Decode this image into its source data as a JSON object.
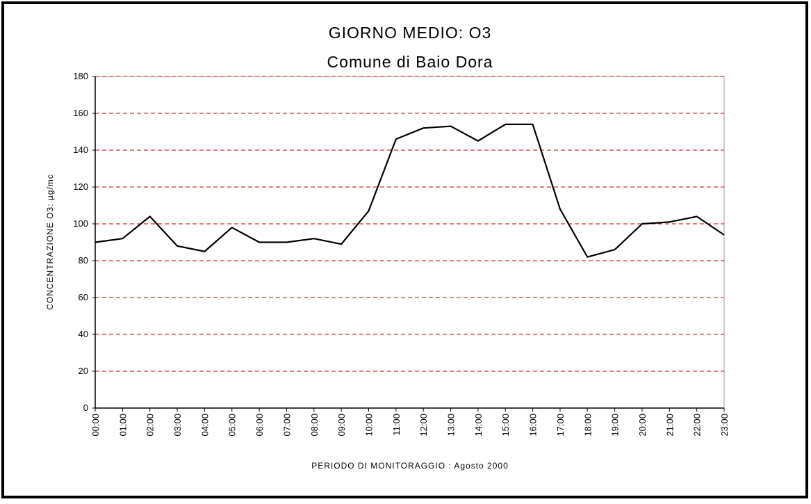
{
  "chart_data": {
    "type": "line",
    "title": "GIORNO MEDIO: O3",
    "subtitle": "Comune di Baio Dora",
    "x_label": "PERIODO DI MONITORAGGIO : Agosto 2000",
    "y_label": "CONCENTRAZIONE O3: µg/mc",
    "categories": [
      "00:00",
      "01:00",
      "02:00",
      "03:00",
      "04:00",
      "05:00",
      "06:00",
      "07:00",
      "08:00",
      "09:00",
      "10:00",
      "11:00",
      "12:00",
      "13:00",
      "14:00",
      "15:00",
      "16:00",
      "17:00",
      "18:00",
      "19:00",
      "20:00",
      "21:00",
      "22:00",
      "23:00"
    ],
    "values": [
      90,
      92,
      104,
      88,
      85,
      98,
      90,
      90,
      92,
      89,
      107,
      146,
      152,
      153,
      145,
      154,
      154,
      108,
      82,
      86,
      100,
      101,
      104,
      94
    ],
    "color": "#000000",
    "ylim": [
      0,
      180
    ],
    "yticks": [
      0,
      20,
      40,
      60,
      80,
      100,
      120,
      140,
      160,
      180
    ],
    "grid": true,
    "grid_color": "#cc0000"
  }
}
